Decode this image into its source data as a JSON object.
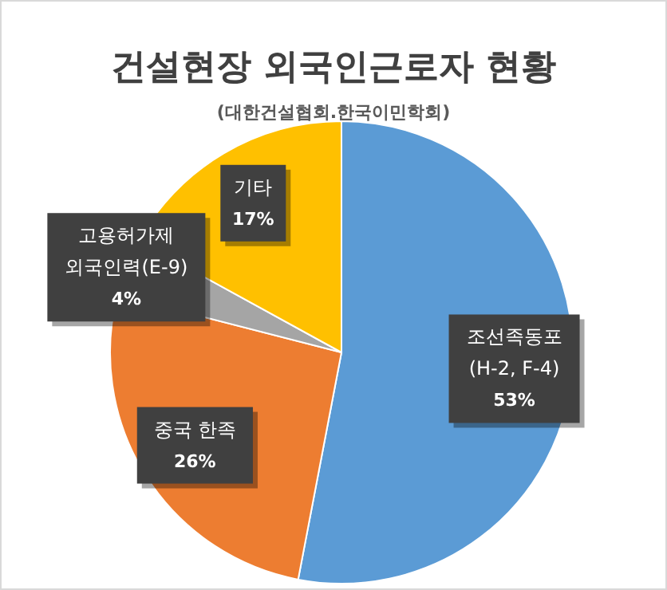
{
  "chart_data": {
    "type": "pie",
    "title": "건설현장 외국인근로자 현황",
    "subtitle": "(대한건설협회.한국이민학회)",
    "categories": [
      "조선족동포\n(H-2, F-4)",
      "중국 한족",
      "고용허가제\n외국인력(E-9)",
      "기타"
    ],
    "values": [
      53,
      26,
      4,
      17
    ],
    "colors": [
      "#5b9bd5",
      "#ed7d31",
      "#a5a5a5",
      "#ffc000"
    ],
    "value_labels": [
      "53%",
      "26%",
      "4%",
      "17%"
    ],
    "legend": false
  }
}
